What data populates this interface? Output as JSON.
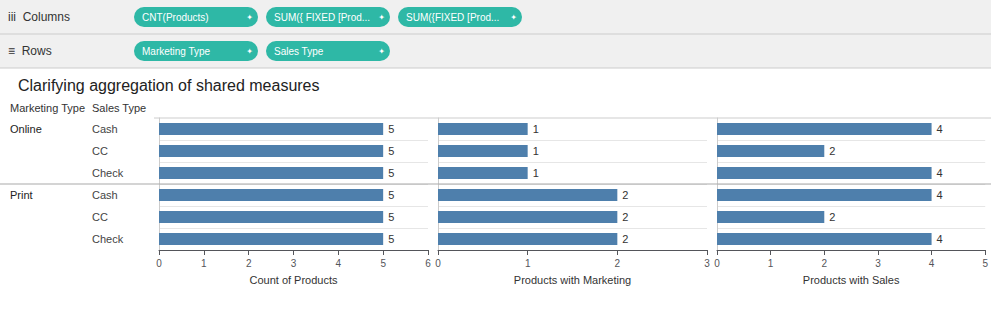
{
  "chart_data": {
    "type": "bar",
    "title": "Clarifying aggregation of shared measures",
    "orientation": "horizontal",
    "data_labels": true,
    "color": "#4e7fac",
    "shelves": [
      {
        "label": "iii  Columns",
        "pills": [
          "CNT(Products)",
          "SUM({ FIXED [Prod...",
          "SUM({FIXED [Prod..."
        ],
        "icon": "✦",
        "color": "#2eb8a6"
      },
      {
        "label": "≡  Rows",
        "pills": [
          "Marketing Type",
          "Sales Type"
        ],
        "icon": "✦",
        "color": "#2eb8a6"
      }
    ],
    "category_headers": [
      "Marketing Type",
      "Sales Type"
    ],
    "groups": [
      "Online",
      null,
      null,
      "Print",
      null,
      null
    ],
    "categories": [
      "Cash",
      "CC",
      "Check",
      "Cash",
      "CC",
      "Check"
    ],
    "panels": [
      {
        "xlabel": "Count of Products",
        "values": [
          5,
          5,
          5,
          5,
          5,
          5
        ],
        "xlim": [
          0,
          6
        ],
        "xticks": [
          0,
          1,
          2,
          3,
          4,
          5,
          6
        ]
      },
      {
        "xlabel": "Products with Marketing",
        "values": [
          1,
          1,
          1,
          2,
          2,
          2
        ],
        "xlim": [
          0,
          3
        ],
        "xticks": [
          0,
          1,
          2,
          3
        ]
      },
      {
        "xlabel": "Products with Sales",
        "values": [
          4,
          2,
          4,
          4,
          2,
          4
        ],
        "xlim": [
          0,
          5
        ],
        "xticks": [
          0,
          1,
          2,
          3,
          4,
          5
        ]
      }
    ]
  }
}
